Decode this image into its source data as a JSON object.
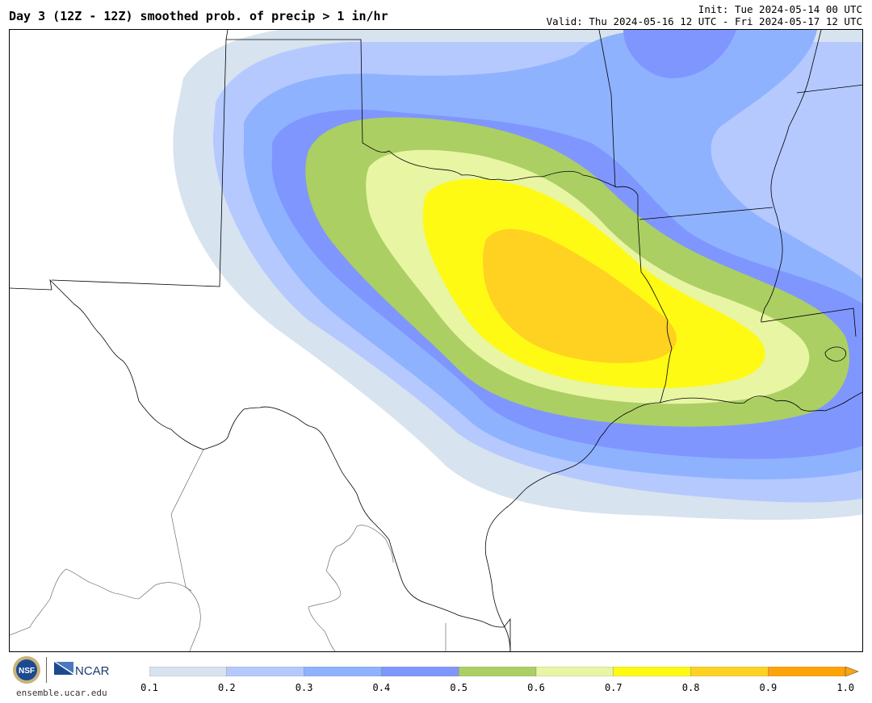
{
  "header": {
    "title": "Day 3 (12Z - 12Z) smoothed prob. of precip > 1 in/hr",
    "init": "Init: Tue 2024-05-14 00 UTC",
    "valid": "Valid: Thu 2024-05-16 12 UTC - Fri 2024-05-17 12 UTC"
  },
  "footer": {
    "site": "ensemble.ucar.edu",
    "logos": [
      "nsf-logo",
      "ncar-logo"
    ],
    "ncar_text": "NCAR",
    "nsf_text": "NSF"
  },
  "colorbar": {
    "ticks": [
      "0.1",
      "0.2",
      "0.3",
      "0.4",
      "0.5",
      "0.6",
      "0.7",
      "0.8",
      "0.9",
      "1.0"
    ],
    "colors": [
      "#d7e3ee",
      "#b5c9ff",
      "#8fb2ff",
      "#7f96ff",
      "#abcf63",
      "#e8f5a3",
      "#fffa14",
      "#ffd121",
      "#ffa30a"
    ]
  },
  "map": {
    "region": "Texas / Louisiana",
    "shading_colors": {
      "p10": "#d7e3ee",
      "p20": "#b5c9ff",
      "p30": "#8fb2ff",
      "p40": "#7f96ff",
      "p50": "#abcf63",
      "p60": "#e8f5a3",
      "p70": "#fffa14",
      "p80": "#ffd121"
    }
  }
}
